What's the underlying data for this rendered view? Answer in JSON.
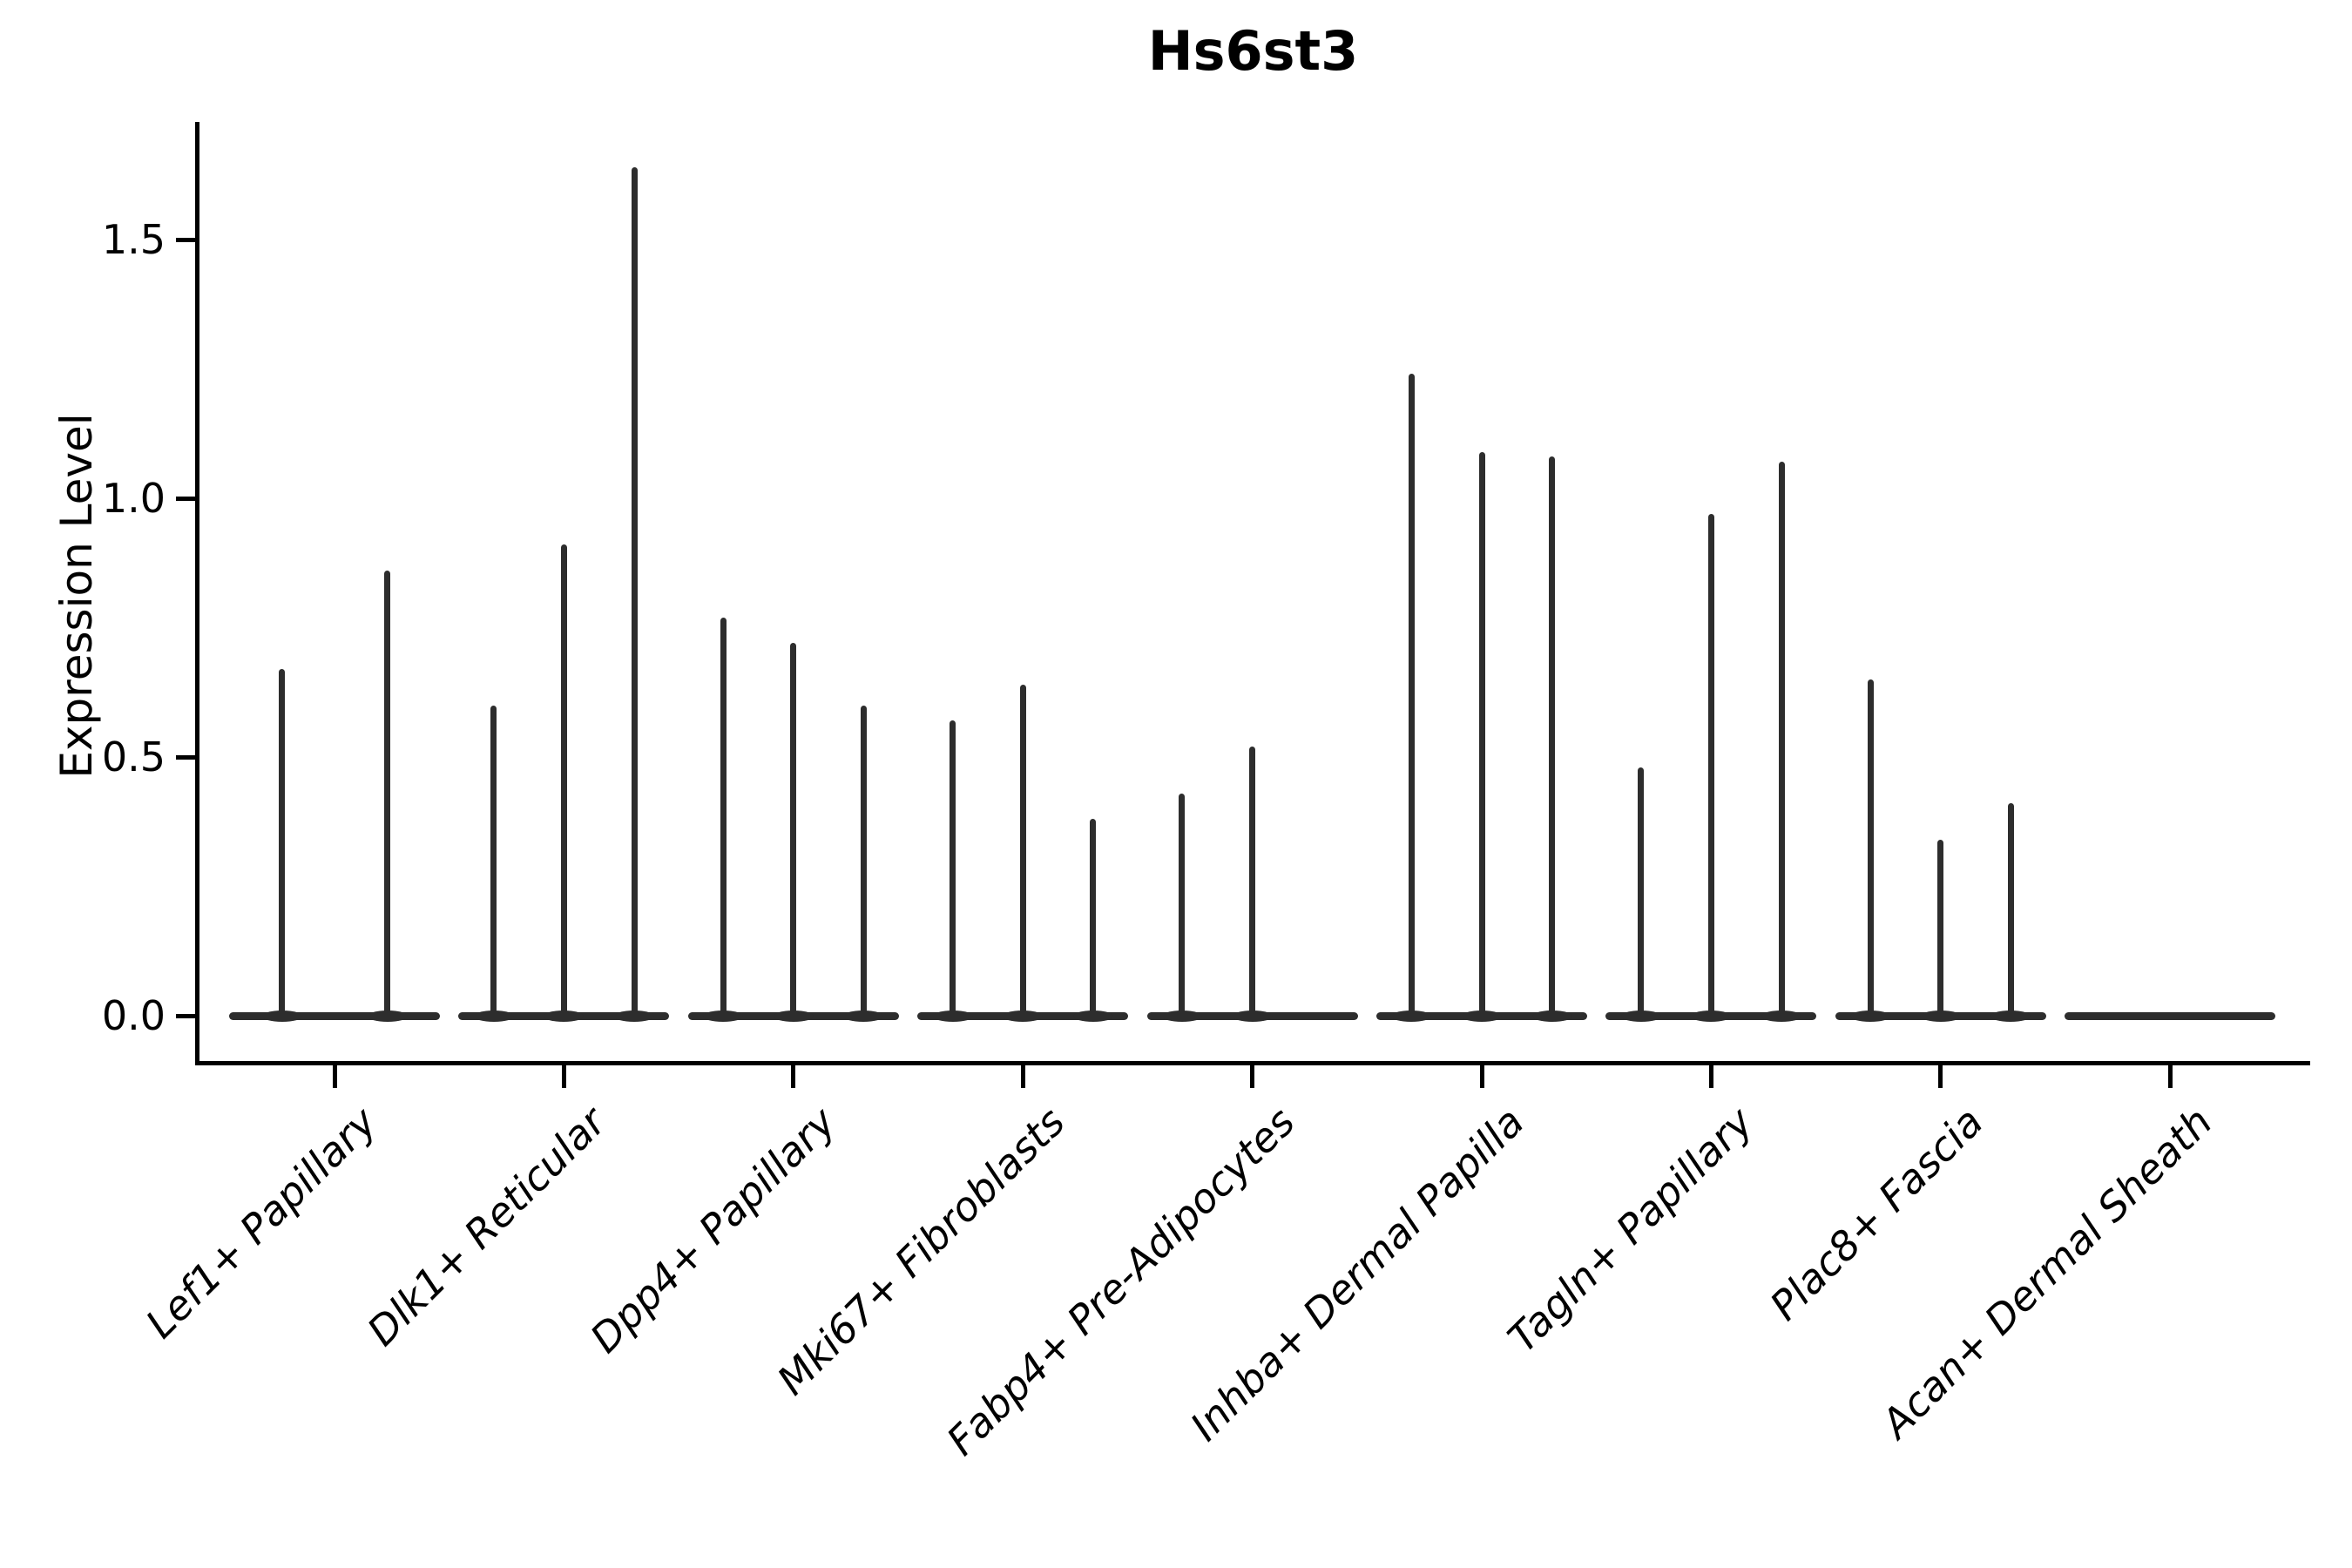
{
  "title": "Hs6st3",
  "colors": {
    "violin": "#2d2d2d",
    "axis": "#000000",
    "text": "#000000",
    "background": "#ffffff"
  },
  "chart_data": {
    "type": "violin",
    "title": "Hs6st3",
    "xlabel": "",
    "ylabel": "Expression Level",
    "ylim": [
      0,
      1.72
    ],
    "yticks": [
      0.0,
      0.5,
      1.0,
      1.5
    ],
    "grid": false,
    "legend": "none",
    "categories": [
      "Lef1+ Papillary",
      "Dlk1+ Reticular",
      "Dpp4+ Papillary",
      "Mki67+ Fibroblasts",
      "Fabp4+ Pre-Adipocytes",
      "Inhba+ Dermal Papilla",
      "Tagln+ Papillary",
      "Plac8+ Fascia",
      "Acan+ Dermal Sheath"
    ],
    "series": [
      {
        "label": "Lef1+ Papillary",
        "violin_maxima": [
          0.67,
          0.86
        ]
      },
      {
        "label": "Dlk1+ Reticular",
        "violin_maxima": [
          0.6,
          0.91,
          1.64
        ]
      },
      {
        "label": "Dpp4+ Papillary",
        "violin_maxima": [
          0.77,
          0.72,
          0.6
        ]
      },
      {
        "label": "Mki67+ Fibroblasts",
        "violin_maxima": [
          0.57,
          0.64,
          0.38
        ]
      },
      {
        "label": "Fabp4+ Pre-Adipocytes",
        "violin_maxima": [
          0.43,
          0.52,
          0.0
        ]
      },
      {
        "label": "Inhba+ Dermal Papilla",
        "violin_maxima": [
          1.24,
          1.09,
          1.08
        ]
      },
      {
        "label": "Tagln+ Papillary",
        "violin_maxima": [
          0.48,
          0.97,
          1.07
        ]
      },
      {
        "label": "Plac8+ Fascia",
        "violin_maxima": [
          0.65,
          0.34,
          0.41
        ]
      },
      {
        "label": "Acan+ Dermal Sheath",
        "violin_maxima": [
          0.0,
          0.0,
          0.0
        ]
      }
    ],
    "description": "Violin plot of Hs6st3 expression per fibroblast subtype; most cells at 0 giving flat violins with narrow spikes to the maxima."
  }
}
